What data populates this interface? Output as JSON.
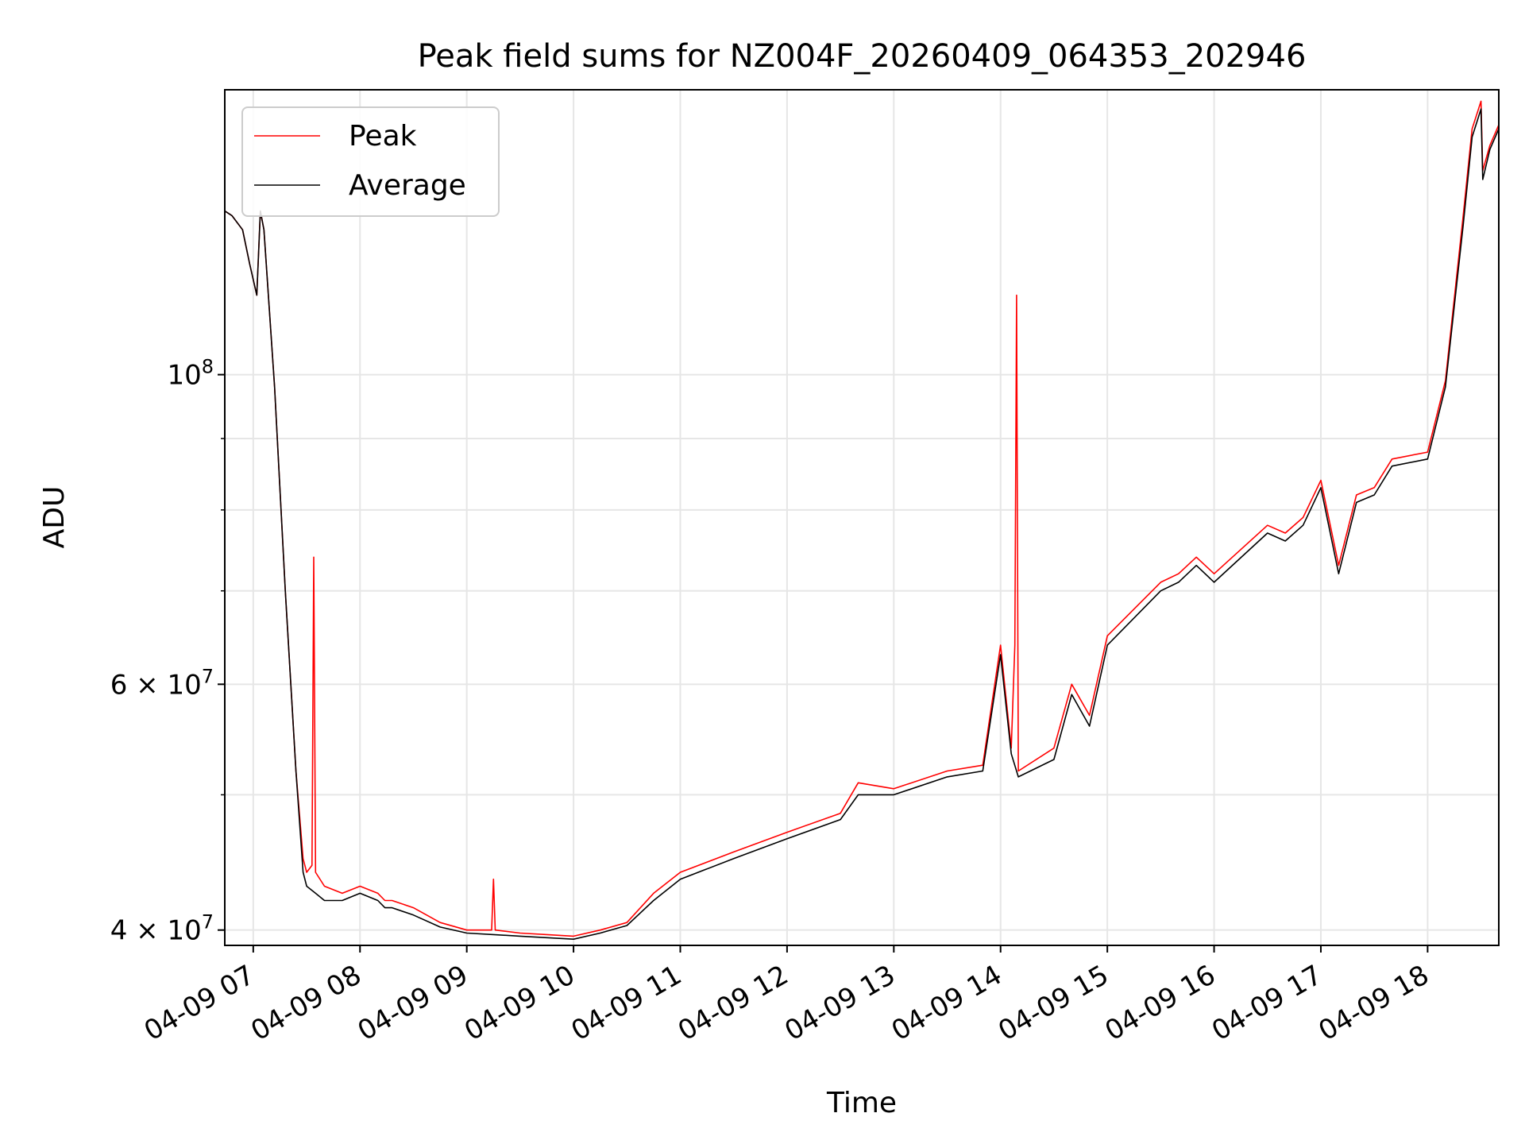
{
  "chart_data": {
    "type": "line",
    "title": "Peak field sums for NZ004F_20260409_064353_202946",
    "xlabel": "Time",
    "ylabel": "ADU",
    "y_scale": "log",
    "xlim": [
      "2026-04-09 06:44",
      "2026-04-09 18:40"
    ],
    "ylim": [
      39000000,
      160000000
    ],
    "x_ticks": [
      "04-09 07",
      "04-09 08",
      "04-09 09",
      "04-09 10",
      "04-09 11",
      "04-09 12",
      "04-09 13",
      "04-09 14",
      "04-09 15",
      "04-09 16",
      "04-09 17",
      "04-09 18"
    ],
    "y_ticks": [
      {
        "value": 40000000,
        "base": "4 × 10",
        "exp": "7"
      },
      {
        "value": 60000000,
        "base": "6 × 10",
        "exp": "7"
      },
      {
        "value": 100000000,
        "base": "10",
        "exp": "8"
      }
    ],
    "grid": true,
    "legend_position": "top-left",
    "series": [
      {
        "name": "Peak",
        "color": "#ff0000",
        "x": [
          "2026-04-09 06:44",
          "2026-04-09 06:48",
          "2026-04-09 06:54",
          "2026-04-09 06:58",
          "2026-04-09 07:02",
          "2026-04-09 07:04",
          "2026-04-09 07:06",
          "2026-04-09 07:12",
          "2026-04-09 07:18",
          "2026-04-09 07:24",
          "2026-04-09 07:28",
          "2026-04-09 07:30",
          "2026-04-09 07:33",
          "2026-04-09 07:34",
          "2026-04-09 07:35",
          "2026-04-09 07:40",
          "2026-04-09 07:50",
          "2026-04-09 08:00",
          "2026-04-09 08:10",
          "2026-04-09 08:14",
          "2026-04-09 08:18",
          "2026-04-09 08:30",
          "2026-04-09 08:45",
          "2026-04-09 09:00",
          "2026-04-09 09:14",
          "2026-04-09 09:15",
          "2026-04-09 09:16",
          "2026-04-09 09:30",
          "2026-04-09 09:45",
          "2026-04-09 10:00",
          "2026-04-09 10:15",
          "2026-04-09 10:30",
          "2026-04-09 10:45",
          "2026-04-09 11:00",
          "2026-04-09 11:30",
          "2026-04-09 12:00",
          "2026-04-09 12:30",
          "2026-04-09 12:40",
          "2026-04-09 13:00",
          "2026-04-09 13:30",
          "2026-04-09 13:50",
          "2026-04-09 14:00",
          "2026-04-09 14:06",
          "2026-04-09 14:08",
          "2026-04-09 14:09",
          "2026-04-09 14:10",
          "2026-04-09 14:30",
          "2026-04-09 14:40",
          "2026-04-09 14:50",
          "2026-04-09 15:00",
          "2026-04-09 15:30",
          "2026-04-09 15:40",
          "2026-04-09 15:50",
          "2026-04-09 16:00",
          "2026-04-09 16:30",
          "2026-04-09 16:40",
          "2026-04-09 16:50",
          "2026-04-09 17:00",
          "2026-04-09 17:10",
          "2026-04-09 17:20",
          "2026-04-09 17:30",
          "2026-04-09 17:40",
          "2026-04-09 18:00",
          "2026-04-09 18:10",
          "2026-04-09 18:20",
          "2026-04-09 18:25",
          "2026-04-09 18:30",
          "2026-04-09 18:31",
          "2026-04-09 18:35",
          "2026-04-09 18:40"
        ],
        "y": [
          131000000,
          130000000,
          127000000,
          120000000,
          114000000,
          131000000,
          127000000,
          98000000,
          70000000,
          52000000,
          45000000,
          44000000,
          44500000,
          74000000,
          44000000,
          43000000,
          42500000,
          43000000,
          42500000,
          42000000,
          42000000,
          41500000,
          40500000,
          40000000,
          40000000,
          43500000,
          40000000,
          39800000,
          39700000,
          39600000,
          40000000,
          40500000,
          42500000,
          44000000,
          45500000,
          47000000,
          48500000,
          51000000,
          50500000,
          52000000,
          52500000,
          64000000,
          54000000,
          64000000,
          114000000,
          52000000,
          54000000,
          60000000,
          57000000,
          65000000,
          71000000,
          72000000,
          74000000,
          72000000,
          78000000,
          77000000,
          79000000,
          84000000,
          73000000,
          82000000,
          83000000,
          87000000,
          88000000,
          99000000,
          130000000,
          150000000,
          157000000,
          140000000,
          146000000,
          151000000
        ]
      },
      {
        "name": "Average",
        "color": "#000000",
        "x": [
          "2026-04-09 06:44",
          "2026-04-09 06:48",
          "2026-04-09 06:54",
          "2026-04-09 06:58",
          "2026-04-09 07:02",
          "2026-04-09 07:04",
          "2026-04-09 07:06",
          "2026-04-09 07:12",
          "2026-04-09 07:18",
          "2026-04-09 07:24",
          "2026-04-09 07:28",
          "2026-04-09 07:30",
          "2026-04-09 07:35",
          "2026-04-09 07:40",
          "2026-04-09 07:50",
          "2026-04-09 08:00",
          "2026-04-09 08:10",
          "2026-04-09 08:14",
          "2026-04-09 08:18",
          "2026-04-09 08:30",
          "2026-04-09 08:45",
          "2026-04-09 09:00",
          "2026-04-09 09:15",
          "2026-04-09 09:30",
          "2026-04-09 09:45",
          "2026-04-09 10:00",
          "2026-04-09 10:15",
          "2026-04-09 10:30",
          "2026-04-09 10:45",
          "2026-04-09 11:00",
          "2026-04-09 11:30",
          "2026-04-09 12:00",
          "2026-04-09 12:30",
          "2026-04-09 12:40",
          "2026-04-09 13:00",
          "2026-04-09 13:30",
          "2026-04-09 13:50",
          "2026-04-09 14:00",
          "2026-04-09 14:06",
          "2026-04-09 14:10",
          "2026-04-09 14:30",
          "2026-04-09 14:40",
          "2026-04-09 14:50",
          "2026-04-09 15:00",
          "2026-04-09 15:30",
          "2026-04-09 15:40",
          "2026-04-09 15:50",
          "2026-04-09 16:00",
          "2026-04-09 16:30",
          "2026-04-09 16:40",
          "2026-04-09 16:50",
          "2026-04-09 17:00",
          "2026-04-09 17:10",
          "2026-04-09 17:20",
          "2026-04-09 17:30",
          "2026-04-09 17:40",
          "2026-04-09 18:00",
          "2026-04-09 18:10",
          "2026-04-09 18:20",
          "2026-04-09 18:25",
          "2026-04-09 18:30",
          "2026-04-09 18:31",
          "2026-04-09 18:35",
          "2026-04-09 18:40"
        ],
        "y": [
          131000000,
          130000000,
          127000000,
          120000000,
          114000000,
          131000000,
          127000000,
          98000000,
          70000000,
          52000000,
          44000000,
          43000000,
          42500000,
          42000000,
          42000000,
          42500000,
          42000000,
          41500000,
          41500000,
          41000000,
          40200000,
          39800000,
          39700000,
          39600000,
          39500000,
          39400000,
          39800000,
          40300000,
          42000000,
          43500000,
          45000000,
          46500000,
          48000000,
          50000000,
          50000000,
          51500000,
          52000000,
          63000000,
          53500000,
          51500000,
          53000000,
          59000000,
          56000000,
          64000000,
          70000000,
          71000000,
          73000000,
          71000000,
          77000000,
          76000000,
          78000000,
          83000000,
          72000000,
          81000000,
          82000000,
          86000000,
          87000000,
          98000000,
          128000000,
          148000000,
          155000000,
          138000000,
          145000000,
          150000000
        ]
      }
    ]
  }
}
